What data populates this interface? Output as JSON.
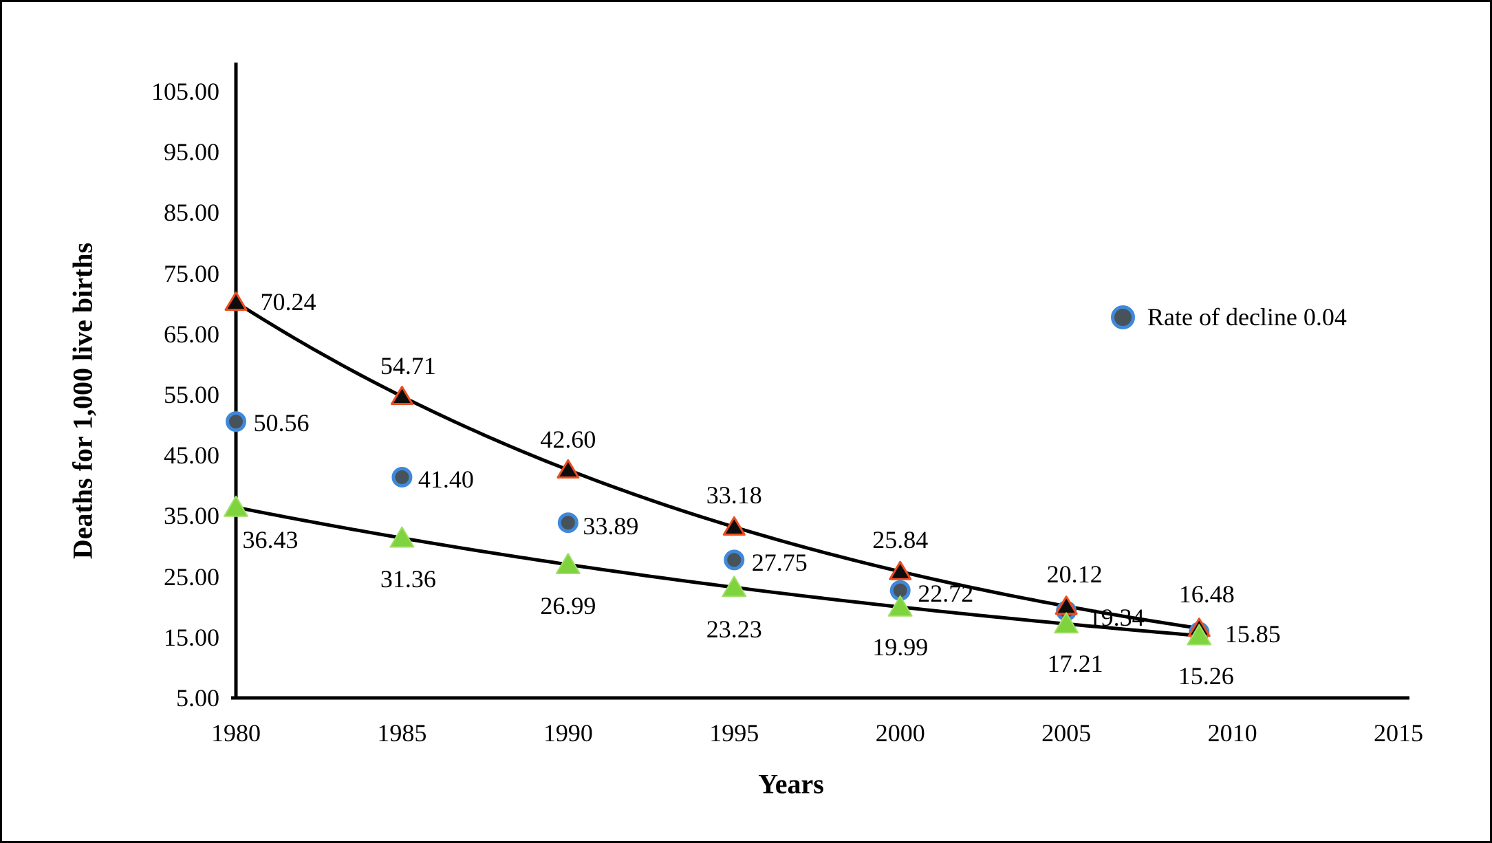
{
  "figure": {
    "background": "#ffffff",
    "border_color": "#000000"
  },
  "axes": {
    "x_label": "Years",
    "y_label": "Deaths for 1,000 live births",
    "x_ticks": [
      1980,
      1985,
      1990,
      1995,
      2000,
      2005,
      2010,
      2015
    ],
    "y_ticks": [
      105,
      95,
      85,
      75,
      65,
      55,
      45,
      35,
      25,
      15,
      5
    ],
    "y_tick_format_decimals": 2
  },
  "legend": {
    "label": "Rate of decline 0.04",
    "marker": "circle-blue-ring"
  },
  "chart_data": {
    "type": "scatter",
    "title": "",
    "xlabel": "Years",
    "ylabel": "Deaths for 1,000 live births",
    "x_range": [
      1980,
      2015
    ],
    "y_range": [
      5,
      105
    ],
    "grid": false,
    "legend_position": "upper-right",
    "x": [
      1980,
      1985,
      1990,
      1995,
      2000,
      2005,
      2009
    ],
    "series": [
      {
        "id": "black-triangle-red-edge",
        "marker": "triangle",
        "marker_fill": "#0d0d0d",
        "marker_stroke": "#ee4d1e",
        "trendline": true,
        "trendline_color": "#000000",
        "values": [
          70.24,
          54.71,
          42.6,
          33.18,
          25.84,
          20.12,
          16.48
        ],
        "label_offsets": [
          [
            76,
            -1
          ],
          [
            9,
            -45
          ],
          [
            0,
            -44
          ],
          [
            0,
            -46
          ],
          [
            0,
            -46
          ],
          [
            12,
            -47
          ],
          [
            11,
            -50
          ]
        ]
      },
      {
        "id": "blue-circle",
        "marker": "circle",
        "marker_fill": "#46535b",
        "marker_stroke": "#3f88da",
        "trendline": false,
        "legend_label": "Rate of decline 0.04",
        "values": [
          50.56,
          41.4,
          33.89,
          27.75,
          22.72,
          19.34,
          15.85
        ],
        "label_offsets": [
          [
            66,
            2
          ],
          [
            64,
            3
          ],
          [
            62,
            5
          ],
          [
            66,
            4
          ],
          [
            66,
            4
          ],
          [
            73,
            9
          ],
          [
            78,
            3
          ]
        ]
      },
      {
        "id": "green-triangle",
        "marker": "triangle",
        "marker_fill": "#7fd33e",
        "marker_stroke": "#a0e065",
        "trendline": true,
        "trendline_color": "#000000",
        "values": [
          36.43,
          31.36,
          26.99,
          23.23,
          19.99,
          17.21,
          15.26
        ],
        "label_offsets": [
          [
            50,
            47
          ],
          [
            9,
            59
          ],
          [
            0,
            60
          ],
          [
            0,
            61
          ],
          [
            0,
            58
          ],
          [
            13,
            58
          ],
          [
            10,
            58
          ]
        ]
      }
    ]
  }
}
